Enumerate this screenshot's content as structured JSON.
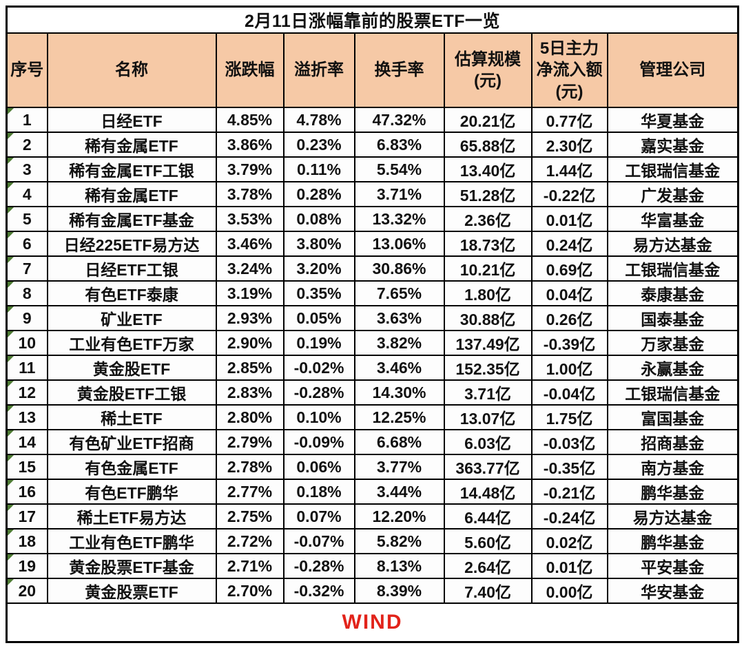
{
  "title": "2月11日涨幅靠前的股票ETF一览",
  "table": {
    "columns": [
      {
        "key": "index",
        "label": "序号"
      },
      {
        "key": "name",
        "label": "名称"
      },
      {
        "key": "change",
        "label": "涨跌幅"
      },
      {
        "key": "premium",
        "label": "溢折率"
      },
      {
        "key": "turnover",
        "label": "换手率"
      },
      {
        "key": "scale",
        "label": "估算规模\n(元)"
      },
      {
        "key": "inflow",
        "label": "5日主力\n净流入额\n(元)"
      },
      {
        "key": "company",
        "label": "管理公司"
      }
    ],
    "rows": [
      [
        "1",
        "日经ETF",
        "4.85%",
        "4.78%",
        "47.32%",
        "20.21亿",
        "0.77亿",
        "华夏基金"
      ],
      [
        "2",
        "稀有金属ETF",
        "3.86%",
        "0.23%",
        "6.83%",
        "65.88亿",
        "2.30亿",
        "嘉实基金"
      ],
      [
        "3",
        "稀有金属ETF工银",
        "3.79%",
        "0.11%",
        "5.54%",
        "13.40亿",
        "1.44亿",
        "工银瑞信基金"
      ],
      [
        "4",
        "稀有金属ETF",
        "3.78%",
        "0.28%",
        "3.71%",
        "51.28亿",
        "-0.22亿",
        "广发基金"
      ],
      [
        "5",
        "稀有金属ETF基金",
        "3.53%",
        "0.08%",
        "13.32%",
        "2.36亿",
        "0.01亿",
        "华富基金"
      ],
      [
        "6",
        "日经225ETF易方达",
        "3.46%",
        "3.80%",
        "13.06%",
        "18.73亿",
        "0.24亿",
        "易方达基金"
      ],
      [
        "7",
        "日经ETF工银",
        "3.24%",
        "3.20%",
        "30.86%",
        "10.21亿",
        "0.69亿",
        "工银瑞信基金"
      ],
      [
        "8",
        "有色ETF泰康",
        "3.19%",
        "0.35%",
        "7.65%",
        "1.80亿",
        "0.04亿",
        "泰康基金"
      ],
      [
        "9",
        "矿业ETF",
        "2.93%",
        "0.05%",
        "3.63%",
        "30.88亿",
        "0.26亿",
        "国泰基金"
      ],
      [
        "10",
        "工业有色ETF万家",
        "2.90%",
        "0.19%",
        "3.82%",
        "137.49亿",
        "-0.39亿",
        "万家基金"
      ],
      [
        "11",
        "黄金股ETF",
        "2.85%",
        "-0.02%",
        "3.46%",
        "152.35亿",
        "1.00亿",
        "永赢基金"
      ],
      [
        "12",
        "黄金股ETF工银",
        "2.83%",
        "-0.28%",
        "14.30%",
        "3.71亿",
        "-0.04亿",
        "工银瑞信基金"
      ],
      [
        "13",
        "稀土ETF",
        "2.80%",
        "0.10%",
        "12.25%",
        "13.07亿",
        "1.75亿",
        "富国基金"
      ],
      [
        "14",
        "有色矿业ETF招商",
        "2.79%",
        "-0.09%",
        "6.68%",
        "6.03亿",
        "-0.03亿",
        "招商基金"
      ],
      [
        "15",
        "有色金属ETF",
        "2.78%",
        "0.06%",
        "3.77%",
        "363.77亿",
        "-0.35亿",
        "南方基金"
      ],
      [
        "16",
        "有色ETF鹏华",
        "2.77%",
        "0.18%",
        "3.44%",
        "14.48亿",
        "-0.21亿",
        "鹏华基金"
      ],
      [
        "17",
        "稀土ETF易方达",
        "2.75%",
        "0.07%",
        "12.20%",
        "6.44亿",
        "-0.24亿",
        "易方达基金"
      ],
      [
        "18",
        "工业有色ETF鹏华",
        "2.72%",
        "-0.07%",
        "5.82%",
        "5.60亿",
        "0.02亿",
        "鹏华基金"
      ],
      [
        "19",
        "黄金股票ETF基金",
        "2.71%",
        "-0.28%",
        "8.13%",
        "2.64亿",
        "0.01亿",
        "平安基金"
      ],
      [
        "20",
        "黄金股票ETF",
        "2.70%",
        "-0.32%",
        "8.39%",
        "7.40亿",
        "0.00亿",
        "华安基金"
      ]
    ]
  },
  "footer": {
    "source_label": "WIND"
  },
  "colors": {
    "header_bg": "#F6C9A6",
    "border_color": "#000000",
    "source_red": "#E2231A",
    "marker_green": "#4E7B34"
  }
}
